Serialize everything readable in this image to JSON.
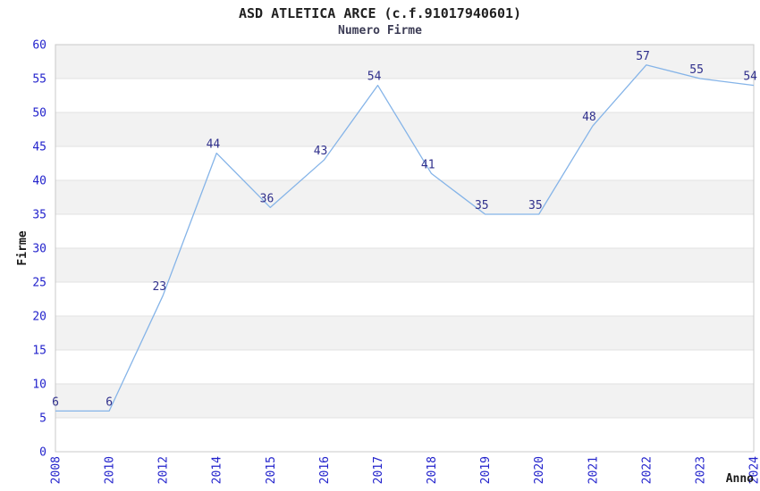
{
  "header": {
    "title": "ASD ATLETICA ARCE (c.f.91017940601)",
    "subtitle": "Numero Firme"
  },
  "chart_data": {
    "type": "line",
    "title": "ASD ATLETICA ARCE (c.f.91017940601)",
    "subtitle": "Numero Firme",
    "xlabel": "Anno",
    "ylabel": "Firme",
    "categories": [
      "2008",
      "2010",
      "2012",
      "2014",
      "2015",
      "2016",
      "2017",
      "2018",
      "2019",
      "2020",
      "2021",
      "2022",
      "2023",
      "2024"
    ],
    "values": [
      6,
      6,
      23,
      44,
      36,
      43,
      54,
      41,
      35,
      35,
      48,
      57,
      55,
      54
    ],
    "data_labels": [
      "6",
      "6",
      "23",
      "44",
      "36",
      "43",
      "54",
      "41",
      "35",
      "35",
      "48",
      "57",
      "55",
      "54"
    ],
    "ylim": [
      0,
      60
    ],
    "ytick_step": 5,
    "ytick_labels": [
      "0",
      "5",
      "10",
      "15",
      "20",
      "25",
      "30",
      "35",
      "40",
      "45",
      "50",
      "55",
      "60"
    ],
    "grid": "horizontal-alternating-bands",
    "legend": "none",
    "marker": "none",
    "colors": {
      "line": "#85b4e8",
      "data_label": "#30308c",
      "tick_label": "#2323cc",
      "band_gray": "#f2f2f2",
      "band_white": "#ffffff",
      "gridline": "#e2e2e2",
      "plot_border": "#c8c8c8",
      "title": "#202020",
      "subtitle": "#3c3c55",
      "axis_title": "#1a1a1a"
    }
  }
}
